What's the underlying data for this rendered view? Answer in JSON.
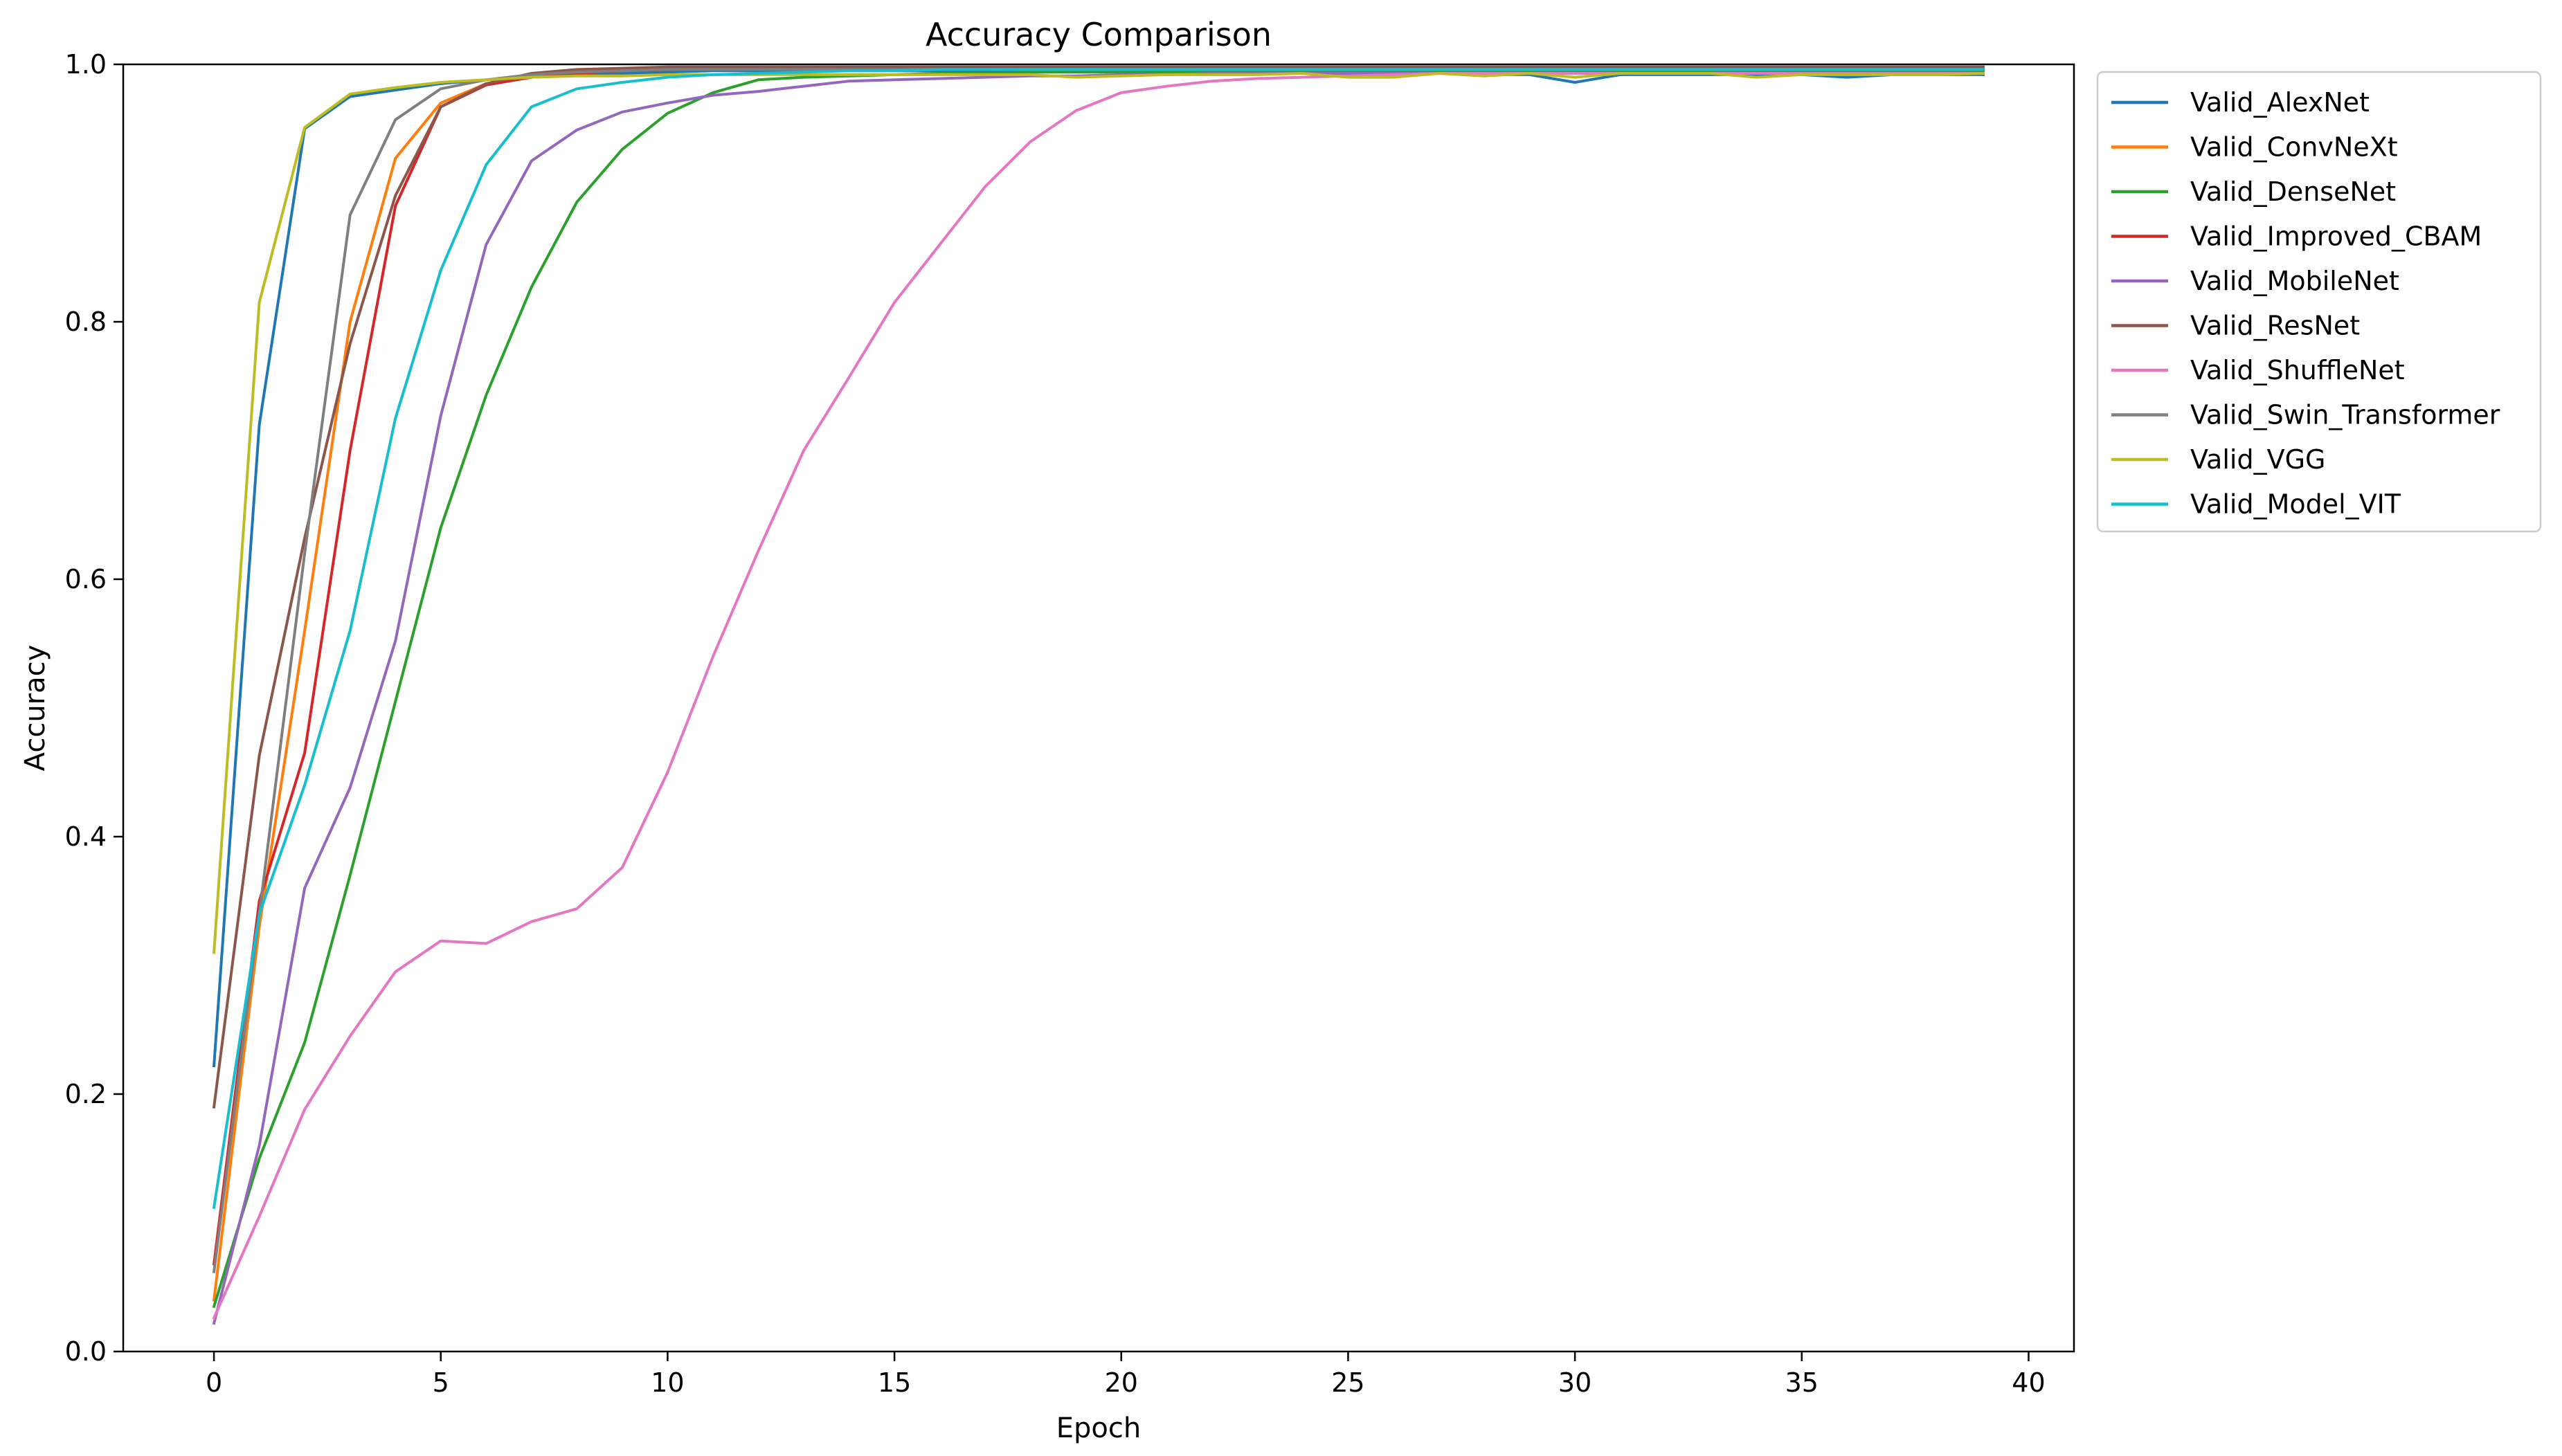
{
  "chart_data": {
    "type": "line",
    "title": "Accuracy Comparison",
    "xlabel": "Epoch",
    "ylabel": "Accuracy",
    "xlim": [
      -2,
      41
    ],
    "ylim": [
      0.0,
      1.0
    ],
    "xticks": [
      0,
      5,
      10,
      15,
      20,
      25,
      30,
      35,
      40
    ],
    "xtick_labels": [
      "0",
      "5",
      "10",
      "15",
      "20",
      "25",
      "30",
      "35",
      "40"
    ],
    "yticks": [
      0.0,
      0.2,
      0.4,
      0.6,
      0.8,
      1.0
    ],
    "ytick_labels": [
      "0.0",
      "0.2",
      "0.4",
      "0.6",
      "0.8",
      "1.0"
    ],
    "grid": false,
    "legend_position": "outside upper right",
    "x": [
      0,
      1,
      2,
      3,
      4,
      5,
      6,
      7,
      8,
      9,
      10,
      11,
      12,
      13,
      14,
      15,
      16,
      17,
      18,
      19,
      20,
      21,
      22,
      23,
      24,
      25,
      26,
      27,
      28,
      29,
      30,
      31,
      32,
      33,
      34,
      35,
      36,
      37,
      38,
      39
    ],
    "series": [
      {
        "name": "Valid_AlexNet",
        "color": "#1f77b4",
        "values": [
          0.222,
          0.72,
          0.95,
          0.975,
          0.98,
          0.985,
          0.988,
          0.99,
          0.992,
          0.993,
          0.994,
          0.995,
          0.995,
          0.995,
          0.995,
          0.995,
          0.995,
          0.995,
          0.995,
          0.995,
          0.995,
          0.995,
          0.995,
          0.993,
          0.993,
          0.993,
          0.992,
          0.993,
          0.992,
          0.992,
          0.986,
          0.992,
          0.992,
          0.992,
          0.992,
          0.992,
          0.99,
          0.992,
          0.992,
          0.992
        ]
      },
      {
        "name": "Valid_ConvNeXt",
        "color": "#ff7f0e",
        "values": [
          0.04,
          0.33,
          0.56,
          0.8,
          0.927,
          0.97,
          0.985,
          0.99,
          0.993,
          0.995,
          0.996,
          0.997,
          0.997,
          0.997,
          0.997,
          0.997,
          0.997,
          0.997,
          0.997,
          0.997,
          0.997,
          0.997,
          0.997,
          0.997,
          0.997,
          0.997,
          0.997,
          0.997,
          0.997,
          0.997,
          0.997,
          0.997,
          0.997,
          0.997,
          0.997,
          0.997,
          0.997,
          0.997,
          0.997,
          0.997
        ]
      },
      {
        "name": "Valid_DenseNet",
        "color": "#2ca02c",
        "values": [
          0.035,
          0.15,
          0.24,
          0.37,
          0.505,
          0.64,
          0.743,
          0.827,
          0.893,
          0.934,
          0.962,
          0.978,
          0.988,
          0.99,
          0.991,
          0.992,
          0.993,
          0.993,
          0.994,
          0.994,
          0.994,
          0.994,
          0.995,
          0.995,
          0.995,
          0.995,
          0.995,
          0.995,
          0.995,
          0.995,
          0.995,
          0.995,
          0.995,
          0.995,
          0.995,
          0.995,
          0.995,
          0.995,
          0.995,
          0.995
        ]
      },
      {
        "name": "Valid_Improved_CBAM",
        "color": "#d62728",
        "values": [
          0.068,
          0.35,
          0.465,
          0.7,
          0.89,
          0.967,
          0.984,
          0.99,
          0.993,
          0.995,
          0.996,
          0.997,
          0.997,
          0.997,
          0.997,
          0.997,
          0.997,
          0.997,
          0.997,
          0.997,
          0.997,
          0.997,
          0.997,
          0.997,
          0.997,
          0.997,
          0.997,
          0.997,
          0.997,
          0.997,
          0.997,
          0.997,
          0.997,
          0.997,
          0.997,
          0.997,
          0.997,
          0.997,
          0.997,
          0.997
        ]
      },
      {
        "name": "Valid_MobileNet",
        "color": "#9467bd",
        "values": [
          0.022,
          0.16,
          0.36,
          0.438,
          0.552,
          0.727,
          0.86,
          0.925,
          0.949,
          0.963,
          0.97,
          0.976,
          0.979,
          0.983,
          0.987,
          0.988,
          0.989,
          0.99,
          0.991,
          0.991,
          0.992,
          0.992,
          0.993,
          0.993,
          0.993,
          0.993,
          0.993,
          0.993,
          0.993,
          0.993,
          0.993,
          0.993,
          0.993,
          0.993,
          0.993,
          0.993,
          0.993,
          0.993,
          0.993,
          0.993
        ]
      },
      {
        "name": "Valid_ResNet",
        "color": "#8c564b",
        "values": [
          0.19,
          0.463,
          0.632,
          0.783,
          0.898,
          0.967,
          0.985,
          0.993,
          0.996,
          0.997,
          0.998,
          0.998,
          0.998,
          0.998,
          0.998,
          0.998,
          0.998,
          0.998,
          0.998,
          0.998,
          0.998,
          0.998,
          0.998,
          0.998,
          0.998,
          0.998,
          0.998,
          0.998,
          0.998,
          0.998,
          0.998,
          0.998,
          0.998,
          0.998,
          0.998,
          0.998,
          0.998,
          0.998,
          0.998,
          0.998
        ]
      },
      {
        "name": "Valid_ShuffleNet",
        "color": "#e377c2",
        "values": [
          0.026,
          0.105,
          0.188,
          0.245,
          0.295,
          0.319,
          0.317,
          0.334,
          0.344,
          0.376,
          0.45,
          0.54,
          0.622,
          0.7,
          0.757,
          0.815,
          0.86,
          0.905,
          0.94,
          0.964,
          0.978,
          0.983,
          0.987,
          0.989,
          0.99,
          0.991,
          0.992,
          0.993,
          0.993,
          0.993,
          0.993,
          0.993,
          0.993,
          0.993,
          0.993,
          0.993,
          0.993,
          0.993,
          0.993,
          0.993
        ]
      },
      {
        "name": "Valid_Swin_Transformer",
        "color": "#7f7f7f",
        "values": [
          0.062,
          0.34,
          0.62,
          0.883,
          0.957,
          0.981,
          0.988,
          0.992,
          0.994,
          0.995,
          0.996,
          0.996,
          0.996,
          0.996,
          0.996,
          0.996,
          0.996,
          0.996,
          0.996,
          0.996,
          0.996,
          0.996,
          0.996,
          0.996,
          0.996,
          0.996,
          0.996,
          0.996,
          0.996,
          0.996,
          0.996,
          0.996,
          0.996,
          0.996,
          0.996,
          0.996,
          0.996,
          0.996,
          0.996,
          0.996
        ]
      },
      {
        "name": "Valid_VGG",
        "color": "#bcbd22",
        "values": [
          0.31,
          0.815,
          0.951,
          0.977,
          0.982,
          0.986,
          0.988,
          0.99,
          0.991,
          0.991,
          0.992,
          0.992,
          0.992,
          0.992,
          0.992,
          0.992,
          0.992,
          0.992,
          0.992,
          0.99,
          0.991,
          0.992,
          0.992,
          0.992,
          0.993,
          0.99,
          0.99,
          0.993,
          0.991,
          0.993,
          0.99,
          0.993,
          0.993,
          0.993,
          0.99,
          0.992,
          0.992,
          0.992,
          0.992,
          0.993
        ]
      },
      {
        "name": "Valid_Model_VIT",
        "color": "#17becf",
        "values": [
          0.112,
          0.34,
          0.44,
          0.56,
          0.725,
          0.84,
          0.922,
          0.967,
          0.981,
          0.986,
          0.99,
          0.992,
          0.993,
          0.994,
          0.995,
          0.995,
          0.996,
          0.996,
          0.996,
          0.996,
          0.996,
          0.996,
          0.996,
          0.996,
          0.996,
          0.996,
          0.996,
          0.996,
          0.996,
          0.996,
          0.996,
          0.996,
          0.996,
          0.996,
          0.996,
          0.996,
          0.996,
          0.996,
          0.996,
          0.996
        ]
      }
    ]
  }
}
